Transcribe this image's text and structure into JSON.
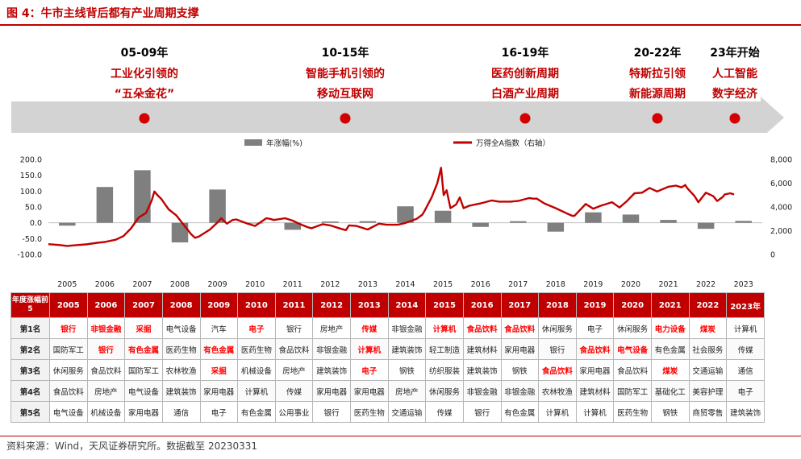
{
  "title": "图 4：牛市主线背后都有产业周期支撑",
  "timeline": {
    "periods": [
      {
        "years": "05-09年",
        "lines": [
          "工业化引领的",
          "“五朵金花”"
        ]
      },
      {
        "years": "10-15年",
        "lines": [
          "智能手机引领的",
          "移动互联网"
        ]
      },
      {
        "years": "16-19年",
        "lines": [
          "医药创新周期",
          "白酒产业周期"
        ]
      },
      {
        "years": "20-22年",
        "lines": [
          "特斯拉引领",
          "新能源周期"
        ]
      },
      {
        "years": "23年开始",
        "lines": [
          "人工智能",
          "数字经济"
        ]
      }
    ],
    "years_color": "#000000",
    "lines_color": "#c00000",
    "dot_color": "#d40000",
    "arrow_color": "#d3d3d3"
  },
  "chart_data": {
    "type": "bar+line",
    "legend": [
      "年涨幅(%)",
      "万得全A指数（右轴）"
    ],
    "legend_placement": "top",
    "categories": [
      "2005",
      "2006",
      "2007",
      "2008",
      "2009",
      "2010",
      "2011",
      "2012",
      "2013",
      "2014",
      "2015",
      "2016",
      "2017",
      "2018",
      "2019",
      "2020",
      "2021",
      "2022",
      "2023"
    ],
    "bar_series": {
      "name": "年涨幅(%)",
      "color": "#7f7f7f",
      "values": [
        -9,
        113,
        166,
        -62,
        105,
        -1,
        -22,
        4,
        5,
        52,
        38,
        -13,
        5,
        -28,
        33,
        26,
        9,
        -19,
        6
      ]
    },
    "line_series": {
      "name": "万得全A指数（右轴）",
      "color": "#c00000",
      "points": [
        [
          2005.0,
          870
        ],
        [
          2005.3,
          790
        ],
        [
          2005.5,
          720
        ],
        [
          2005.8,
          800
        ],
        [
          2006.0,
          850
        ],
        [
          2006.3,
          980
        ],
        [
          2006.5,
          1050
        ],
        [
          2006.8,
          1250
        ],
        [
          2007.0,
          1550
        ],
        [
          2007.2,
          2200
        ],
        [
          2007.4,
          3100
        ],
        [
          2007.5,
          3300
        ],
        [
          2007.6,
          3500
        ],
        [
          2007.75,
          4550
        ],
        [
          2007.82,
          5300
        ],
        [
          2007.9,
          5000
        ],
        [
          2008.0,
          4700
        ],
        [
          2008.2,
          3800
        ],
        [
          2008.4,
          3300
        ],
        [
          2008.6,
          2500
        ],
        [
          2008.8,
          1700
        ],
        [
          2008.9,
          1400
        ],
        [
          2009.0,
          1500
        ],
        [
          2009.3,
          2100
        ],
        [
          2009.5,
          2700
        ],
        [
          2009.6,
          3050
        ],
        [
          2009.75,
          2600
        ],
        [
          2009.9,
          2900
        ],
        [
          2010.0,
          2950
        ],
        [
          2010.3,
          2600
        ],
        [
          2010.5,
          2400
        ],
        [
          2010.8,
          3050
        ],
        [
          2010.9,
          3000
        ],
        [
          2011.0,
          2900
        ],
        [
          2011.3,
          3050
        ],
        [
          2011.5,
          2850
        ],
        [
          2011.7,
          2550
        ],
        [
          2011.9,
          2300
        ],
        [
          2012.0,
          2200
        ],
        [
          2012.3,
          2550
        ],
        [
          2012.5,
          2450
        ],
        [
          2012.8,
          2150
        ],
        [
          2012.92,
          2050
        ],
        [
          2013.0,
          2450
        ],
        [
          2013.2,
          2400
        ],
        [
          2013.5,
          2100
        ],
        [
          2013.8,
          2600
        ],
        [
          2013.9,
          2550
        ],
        [
          2014.0,
          2500
        ],
        [
          2014.3,
          2500
        ],
        [
          2014.5,
          2650
        ],
        [
          2014.8,
          3000
        ],
        [
          2014.95,
          3350
        ],
        [
          2015.0,
          3600
        ],
        [
          2015.2,
          4800
        ],
        [
          2015.35,
          6000
        ],
        [
          2015.45,
          7300
        ],
        [
          2015.52,
          5000
        ],
        [
          2015.6,
          5400
        ],
        [
          2015.7,
          3900
        ],
        [
          2015.85,
          4200
        ],
        [
          2015.95,
          4800
        ],
        [
          2016.05,
          3900
        ],
        [
          2016.2,
          4100
        ],
        [
          2016.5,
          4300
        ],
        [
          2016.8,
          4550
        ],
        [
          2017.0,
          4450
        ],
        [
          2017.3,
          4450
        ],
        [
          2017.5,
          4500
        ],
        [
          2017.8,
          4750
        ],
        [
          2017.9,
          4700
        ],
        [
          2018.0,
          4700
        ],
        [
          2018.2,
          4300
        ],
        [
          2018.5,
          3900
        ],
        [
          2018.8,
          3450
        ],
        [
          2018.95,
          3250
        ],
        [
          2019.0,
          3250
        ],
        [
          2019.3,
          4250
        ],
        [
          2019.5,
          3850
        ],
        [
          2019.7,
          4100
        ],
        [
          2019.9,
          4300
        ],
        [
          2020.0,
          4400
        ],
        [
          2020.2,
          3950
        ],
        [
          2020.4,
          4500
        ],
        [
          2020.6,
          5150
        ],
        [
          2020.8,
          5200
        ],
        [
          2020.95,
          5500
        ],
        [
          2021.0,
          5600
        ],
        [
          2021.2,
          5300
        ],
        [
          2021.5,
          5700
        ],
        [
          2021.7,
          5800
        ],
        [
          2021.85,
          5650
        ],
        [
          2021.95,
          5850
        ],
        [
          2022.0,
          5600
        ],
        [
          2022.2,
          4900
        ],
        [
          2022.3,
          4400
        ],
        [
          2022.5,
          5200
        ],
        [
          2022.7,
          4900
        ],
        [
          2022.8,
          4500
        ],
        [
          2022.95,
          4850
        ],
        [
          2023.0,
          5050
        ],
        [
          2023.15,
          5150
        ],
        [
          2023.25,
          5050
        ]
      ]
    },
    "left_axis": {
      "min": -100,
      "max": 200,
      "ticks": [
        "200.0",
        "150.0",
        "100.0",
        "50.0",
        "0.0",
        "-50.0",
        "-100.0"
      ]
    },
    "right_axis": {
      "min": 0,
      "max": 8000,
      "ticks": [
        "8,000",
        "6,000",
        "4,000",
        "2,000",
        "0"
      ]
    }
  },
  "table": {
    "corner": "年度涨幅前5",
    "years": [
      "2005",
      "2006",
      "2007",
      "2008",
      "2009",
      "2010",
      "2011",
      "2012",
      "2013",
      "2014",
      "2015",
      "2016",
      "2017",
      "2018",
      "2019",
      "2020",
      "2021",
      "2022",
      "2023年"
    ],
    "rows": [
      {
        "rank": "第1名",
        "cells": [
          {
            "t": "银行",
            "hl": true
          },
          {
            "t": "非银金融",
            "hl": true
          },
          {
            "t": "采掘",
            "hl": true
          },
          {
            "t": "电气设备",
            "hl": false
          },
          {
            "t": "汽车",
            "hl": false
          },
          {
            "t": "电子",
            "hl": true
          },
          {
            "t": "银行",
            "hl": false
          },
          {
            "t": "房地产",
            "hl": false
          },
          {
            "t": "传媒",
            "hl": true
          },
          {
            "t": "非银金融",
            "hl": false
          },
          {
            "t": "计算机",
            "hl": true
          },
          {
            "t": "食品饮料",
            "hl": true
          },
          {
            "t": "食品饮料",
            "hl": true
          },
          {
            "t": "休闲服务",
            "hl": false
          },
          {
            "t": "电子",
            "hl": false
          },
          {
            "t": "休闲服务",
            "hl": false
          },
          {
            "t": "电力设备",
            "hl": true
          },
          {
            "t": "煤炭",
            "hl": true
          },
          {
            "t": "计算机",
            "hl": false
          }
        ]
      },
      {
        "rank": "第2名",
        "cells": [
          {
            "t": "国防军工",
            "hl": false
          },
          {
            "t": "银行",
            "hl": true
          },
          {
            "t": "有色金属",
            "hl": true
          },
          {
            "t": "医药生物",
            "hl": false
          },
          {
            "t": "有色金属",
            "hl": true
          },
          {
            "t": "医药生物",
            "hl": false
          },
          {
            "t": "食品饮料",
            "hl": false
          },
          {
            "t": "非银金融",
            "hl": false
          },
          {
            "t": "计算机",
            "hl": true
          },
          {
            "t": "建筑装饰",
            "hl": false
          },
          {
            "t": "轻工制造",
            "hl": false
          },
          {
            "t": "建筑材料",
            "hl": false
          },
          {
            "t": "家用电器",
            "hl": false
          },
          {
            "t": "银行",
            "hl": false
          },
          {
            "t": "食品饮料",
            "hl": true
          },
          {
            "t": "电气设备",
            "hl": true
          },
          {
            "t": "有色金属",
            "hl": false
          },
          {
            "t": "社会服务",
            "hl": false
          },
          {
            "t": "传媒",
            "hl": false
          }
        ]
      },
      {
        "rank": "第3名",
        "cells": [
          {
            "t": "休闲服务",
            "hl": false
          },
          {
            "t": "食品饮料",
            "hl": false
          },
          {
            "t": "国防军工",
            "hl": false
          },
          {
            "t": "农林牧渔",
            "hl": false
          },
          {
            "t": "采掘",
            "hl": true
          },
          {
            "t": "机械设备",
            "hl": false
          },
          {
            "t": "房地产",
            "hl": false
          },
          {
            "t": "建筑装饰",
            "hl": false
          },
          {
            "t": "电子",
            "hl": true
          },
          {
            "t": "钢铁",
            "hl": false
          },
          {
            "t": "纺织服装",
            "hl": false
          },
          {
            "t": "建筑装饰",
            "hl": false
          },
          {
            "t": "钢铁",
            "hl": false
          },
          {
            "t": "食品饮料",
            "hl": true
          },
          {
            "t": "家用电器",
            "hl": false
          },
          {
            "t": "食品饮料",
            "hl": false
          },
          {
            "t": "煤炭",
            "hl": true
          },
          {
            "t": "交通运输",
            "hl": false
          },
          {
            "t": "通信",
            "hl": false
          }
        ]
      },
      {
        "rank": "第4名",
        "cells": [
          {
            "t": "食品饮料",
            "hl": false
          },
          {
            "t": "房地产",
            "hl": false
          },
          {
            "t": "电气设备",
            "hl": false
          },
          {
            "t": "建筑装饰",
            "hl": false
          },
          {
            "t": "家用电器",
            "hl": false
          },
          {
            "t": "计算机",
            "hl": false
          },
          {
            "t": "传媒",
            "hl": false
          },
          {
            "t": "家用电器",
            "hl": false
          },
          {
            "t": "家用电器",
            "hl": false
          },
          {
            "t": "房地产",
            "hl": false
          },
          {
            "t": "休闲服务",
            "hl": false
          },
          {
            "t": "非银金融",
            "hl": false
          },
          {
            "t": "非银金融",
            "hl": false
          },
          {
            "t": "农林牧渔",
            "hl": false
          },
          {
            "t": "建筑材料",
            "hl": false
          },
          {
            "t": "国防军工",
            "hl": false
          },
          {
            "t": "基础化工",
            "hl": false
          },
          {
            "t": "美容护理",
            "hl": false
          },
          {
            "t": "电子",
            "hl": false
          }
        ]
      },
      {
        "rank": "第5名",
        "cells": [
          {
            "t": "电气设备",
            "hl": false
          },
          {
            "t": "机械设备",
            "hl": false
          },
          {
            "t": "家用电器",
            "hl": false
          },
          {
            "t": "通信",
            "hl": false
          },
          {
            "t": "电子",
            "hl": false
          },
          {
            "t": "有色金属",
            "hl": false
          },
          {
            "t": "公用事业",
            "hl": false
          },
          {
            "t": "银行",
            "hl": false
          },
          {
            "t": "医药生物",
            "hl": false
          },
          {
            "t": "交通运输",
            "hl": false
          },
          {
            "t": "传媒",
            "hl": false
          },
          {
            "t": "银行",
            "hl": false
          },
          {
            "t": "有色金属",
            "hl": false
          },
          {
            "t": "计算机",
            "hl": false
          },
          {
            "t": "计算机",
            "hl": false
          },
          {
            "t": "医药生物",
            "hl": false
          },
          {
            "t": "钢铁",
            "hl": false
          },
          {
            "t": "商贸零售",
            "hl": false
          },
          {
            "t": "建筑装饰",
            "hl": false
          }
        ]
      }
    ]
  },
  "source": "资料来源：Wind，天风证券研究所。数据截至 20230331"
}
